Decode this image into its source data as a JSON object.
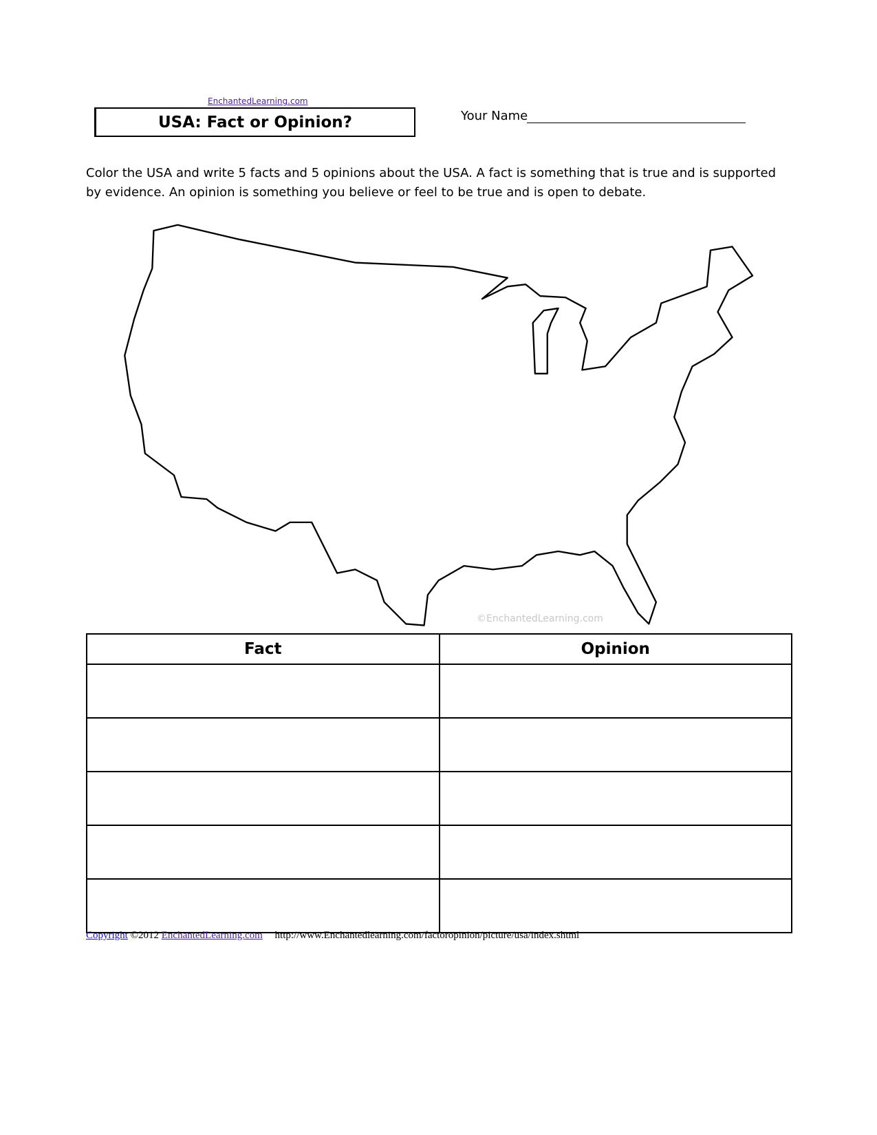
{
  "header": {
    "site_link": "EnchantedLearning.com",
    "title": "USA: Fact or Opinion?",
    "name_label": "Your Name"
  },
  "instructions": "Color the USA and write 5 facts and 5 opinions about the USA. A fact is something that is true and is supported by evidence. An opinion is something you believe or feel to be true and is open to debate.",
  "map": {
    "watermark": "©EnchantedLearning.com"
  },
  "table": {
    "columns": [
      "Fact",
      "Opinion"
    ],
    "rows": [
      [
        "",
        ""
      ],
      [
        "",
        ""
      ],
      [
        "",
        ""
      ],
      [
        "",
        ""
      ],
      [
        "",
        ""
      ]
    ]
  },
  "footer": {
    "copyright_link": "Copyright",
    "year": "©2012",
    "site_link": "EnchantedLearning.com",
    "url": "http://www.Enchantedlearning.com/factoropinion/picture/usa/index.shtml"
  }
}
